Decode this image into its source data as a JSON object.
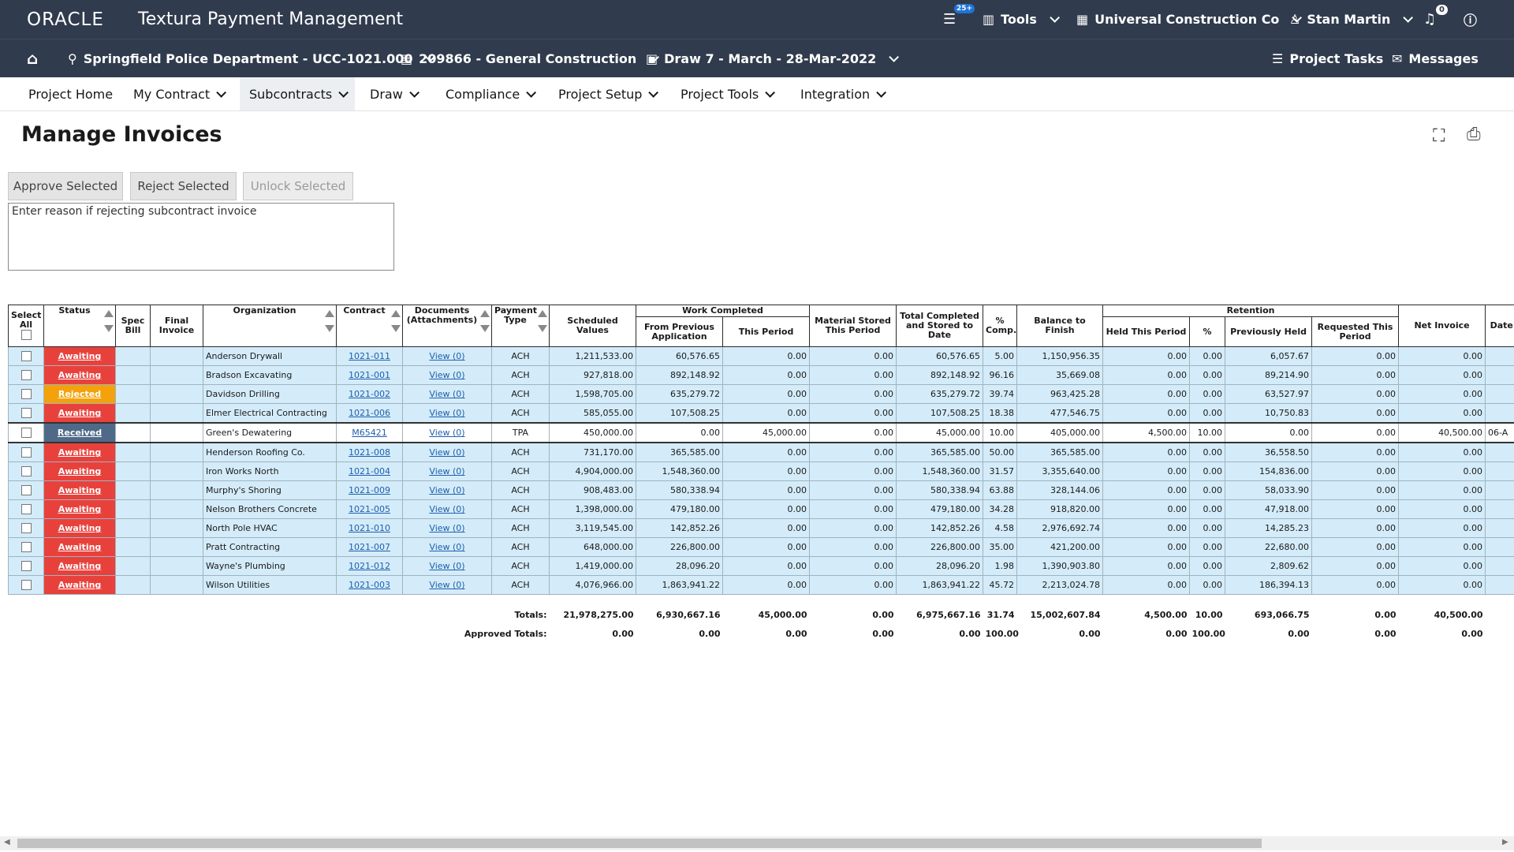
{
  "header": {
    "brand": "ORACLE",
    "app": "Textura Payment Management",
    "task_badge": "25+",
    "tools": "Tools",
    "company": "Universal Construction Co",
    "user": "Stan Martin",
    "notifications": "0"
  },
  "subheader": {
    "project": "Springfield Police Department - UCC-1021.000",
    "contract": "209866 - General Construction",
    "draw": "Draw 7 - March - 28-Mar-2022",
    "tasks": "Project Tasks",
    "messages": "Messages"
  },
  "nav": [
    "Project Home",
    "My Contract",
    "Subcontracts",
    "Draw",
    "Compliance",
    "Project Setup",
    "Project Tools",
    "Integration"
  ],
  "page_title": "Manage Invoices",
  "buttons": [
    "Approve Selected",
    "Reject Selected",
    "Unlock Selected"
  ],
  "reason_placeholder": "Enter reason if rejecting subcontract invoice",
  "table": {
    "columns": [
      "Select All",
      "Status",
      "Spec Bill",
      "Final Invoice",
      "Organization",
      "Contract",
      "Documents (Attachments)",
      "Payment Type",
      "Scheduled Values",
      {
        "group": "Work Completed",
        "columns": [
          "From Previous Application",
          "This Period"
        ]
      },
      "Material Stored This Period",
      "Total Completed and Stored to Date",
      "% Comp.",
      "Balance to Finish",
      {
        "group": "Retention",
        "columns": [
          "Held This Period",
          "%",
          "Previously Held",
          "Requested This Period"
        ]
      },
      "Net Invoice",
      "Date Submitted"
    ],
    "rows": [
      {
        "status": "Awaiting",
        "organization": "Anderson Drywall",
        "contract": "1021-011",
        "documents": "View (0)",
        "payment_type": "ACH",
        "amounts": [
          "1,211,533.00",
          "60,576.65",
          "0.00",
          "0.00",
          "60,576.65",
          "5.00",
          "1,150,956.35",
          "0.00",
          "0.00",
          "6,057.67",
          "0.00",
          "0.00"
        ]
      },
      {
        "status": "Awaiting",
        "organization": "Bradson Excavating",
        "contract": "1021-001",
        "documents": "View (0)",
        "payment_type": "ACH",
        "amounts": [
          "927,818.00",
          "892,148.92",
          "0.00",
          "0.00",
          "892,148.92",
          "96.16",
          "35,669.08",
          "0.00",
          "0.00",
          "89,214.90",
          "0.00",
          "0.00"
        ]
      },
      {
        "status": "Rejected",
        "organization": "Davidson Drilling",
        "contract": "1021-002",
        "documents": "View (0)",
        "payment_type": "ACH",
        "amounts": [
          "1,598,705.00",
          "635,279.72",
          "0.00",
          "0.00",
          "635,279.72",
          "39.74",
          "963,425.28",
          "0.00",
          "0.00",
          "63,527.97",
          "0.00",
          "0.00"
        ]
      },
      {
        "status": "Awaiting",
        "organization": "Elmer Electrical Contracting",
        "contract": "1021-006",
        "documents": "View (0)",
        "payment_type": "ACH",
        "amounts": [
          "585,055.00",
          "107,508.25",
          "0.00",
          "0.00",
          "107,508.25",
          "18.38",
          "477,546.75",
          "0.00",
          "0.00",
          "10,750.83",
          "0.00",
          "0.00"
        ]
      },
      {
        "status": "Received",
        "organization": "Green's Dewatering",
        "contract": "M65421",
        "documents": "View (0)",
        "payment_type": "TPA",
        "amounts": [
          "450,000.00",
          "0.00",
          "45,000.00",
          "0.00",
          "45,000.00",
          "10.00",
          "405,000.00",
          "4,500.00",
          "10.00",
          "0.00",
          "0.00",
          "40,500.00"
        ],
        "date": "06-A"
      },
      {
        "status": "Awaiting",
        "organization": "Henderson Roofing Co.",
        "contract": "1021-008",
        "documents": "View (0)",
        "payment_type": "ACH",
        "amounts": [
          "731,170.00",
          "365,585.00",
          "0.00",
          "0.00",
          "365,585.00",
          "50.00",
          "365,585.00",
          "0.00",
          "0.00",
          "36,558.50",
          "0.00",
          "0.00"
        ]
      },
      {
        "status": "Awaiting",
        "organization": "Iron Works North",
        "contract": "1021-004",
        "documents": "View (0)",
        "payment_type": "ACH",
        "amounts": [
          "4,904,000.00",
          "1,548,360.00",
          "0.00",
          "0.00",
          "1,548,360.00",
          "31.57",
          "3,355,640.00",
          "0.00",
          "0.00",
          "154,836.00",
          "0.00",
          "0.00"
        ]
      },
      {
        "status": "Awaiting",
        "organization": "Murphy's Shoring",
        "contract": "1021-009",
        "documents": "View (0)",
        "payment_type": "ACH",
        "amounts": [
          "908,483.00",
          "580,338.94",
          "0.00",
          "0.00",
          "580,338.94",
          "63.88",
          "328,144.06",
          "0.00",
          "0.00",
          "58,033.90",
          "0.00",
          "0.00"
        ]
      },
      {
        "status": "Awaiting",
        "organization": "Nelson Brothers Concrete",
        "contract": "1021-005",
        "documents": "View (0)",
        "payment_type": "ACH",
        "amounts": [
          "1,398,000.00",
          "479,180.00",
          "0.00",
          "0.00",
          "479,180.00",
          "34.28",
          "918,820.00",
          "0.00",
          "0.00",
          "47,918.00",
          "0.00",
          "0.00"
        ]
      },
      {
        "status": "Awaiting",
        "organization": "North Pole HVAC",
        "contract": "1021-010",
        "documents": "View (0)",
        "payment_type": "ACH",
        "amounts": [
          "3,119,545.00",
          "142,852.26",
          "0.00",
          "0.00",
          "142,852.26",
          "4.58",
          "2,976,692.74",
          "0.00",
          "0.00",
          "14,285.23",
          "0.00",
          "0.00"
        ]
      },
      {
        "status": "Awaiting",
        "organization": "Pratt Contracting",
        "contract": "1021-007",
        "documents": "View (0)",
        "payment_type": "ACH",
        "amounts": [
          "648,000.00",
          "226,800.00",
          "0.00",
          "0.00",
          "226,800.00",
          "35.00",
          "421,200.00",
          "0.00",
          "0.00",
          "22,680.00",
          "0.00",
          "0.00"
        ]
      },
      {
        "status": "Awaiting",
        "organization": "Wayne's Plumbing",
        "contract": "1021-012",
        "documents": "View (0)",
        "payment_type": "ACH",
        "amounts": [
          "1,419,000.00",
          "28,096.20",
          "0.00",
          "0.00",
          "28,096.20",
          "1.98",
          "1,390,903.80",
          "0.00",
          "0.00",
          "2,809.62",
          "0.00",
          "0.00"
        ]
      },
      {
        "status": "Awaiting",
        "organization": "Wilson Utilities",
        "contract": "1021-003",
        "documents": "View (0)",
        "payment_type": "ACH",
        "amounts": [
          "4,076,966.00",
          "1,863,941.22",
          "0.00",
          "0.00",
          "1,863,941.22",
          "45.72",
          "2,213,024.78",
          "0.00",
          "0.00",
          "186,394.13",
          "0.00",
          "0.00"
        ]
      }
    ],
    "totals": [
      {
        "label": "Totals:",
        "amounts": [
          "21,978,275.00",
          "6,930,667.16",
          "45,000.00",
          "0.00",
          "6,975,667.16",
          "31.74",
          "15,002,607.84",
          "4,500.00",
          "10.00",
          "693,066.75",
          "0.00",
          "40,500.00"
        ]
      },
      {
        "label": "Approved Totals:",
        "amounts": [
          "0.00",
          "0.00",
          "0.00",
          "0.00",
          "0.00",
          "100.00",
          "0.00",
          "0.00",
          "100.00",
          "0.00",
          "0.00",
          "0.00"
        ]
      }
    ]
  }
}
